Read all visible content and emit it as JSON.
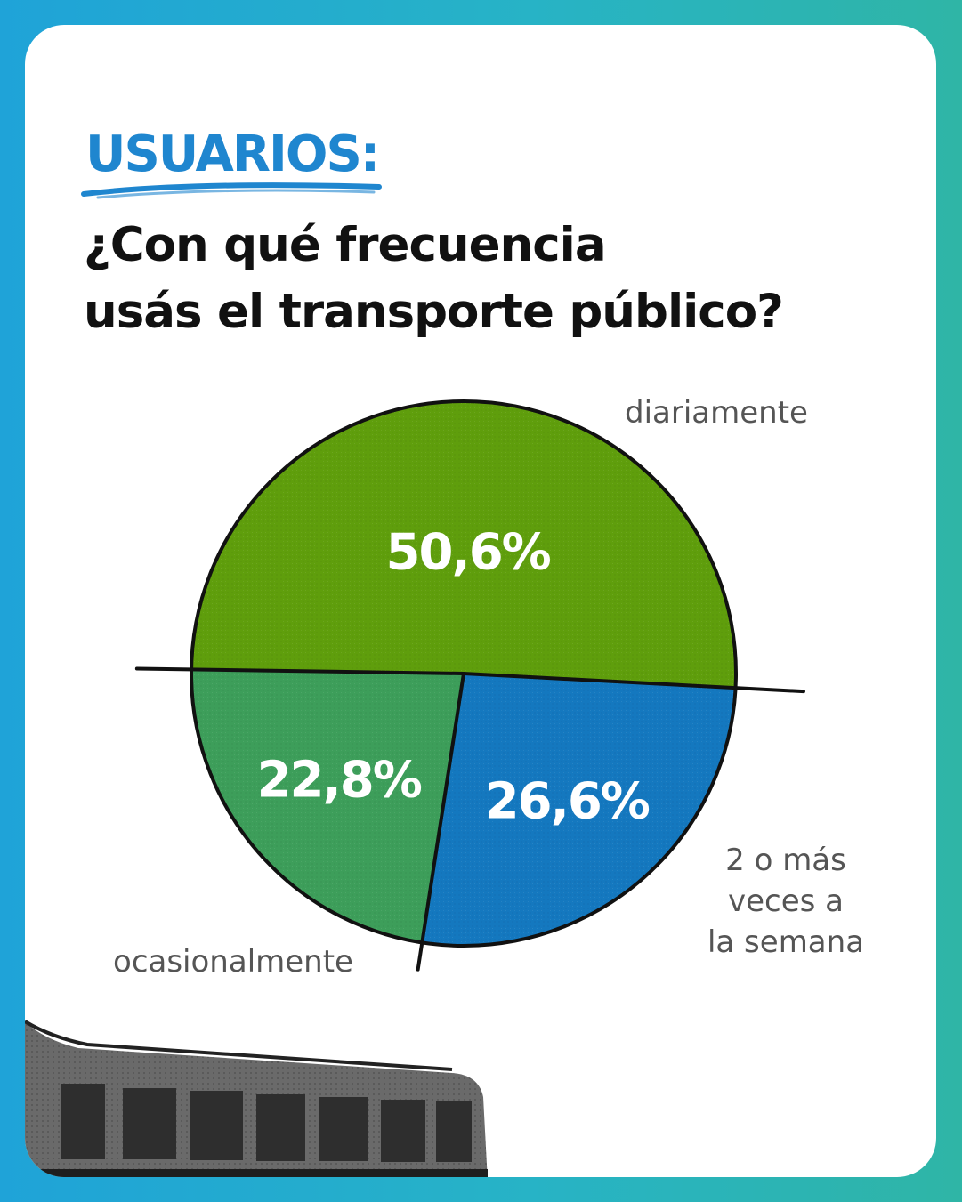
{
  "header": {
    "kicker": "USUARIOS:",
    "question_lines": [
      "¿Con qué frecuencia",
      "usás el transporte público?"
    ]
  },
  "colors": {
    "frame_left": "#1fa3d8",
    "frame_right": "#2fb5a6",
    "kicker": "#1f86cf",
    "slice_diariamente": "#5f9e0c",
    "slice_semana": "#1478bf",
    "slice_ocasional": "#3d9e5a",
    "outline": "#111111",
    "label_text": "#555555"
  },
  "chart_data": {
    "type": "pie",
    "title": "",
    "slices": [
      {
        "category_lines": [
          "diariamente"
        ],
        "value": 50.6,
        "value_label": "50,6%",
        "color": "#5f9e0c"
      },
      {
        "category_lines": [
          "2 o más",
          "veces a",
          "la semana"
        ],
        "value": 26.6,
        "value_label": "26,6%",
        "color": "#1478bf"
      },
      {
        "category_lines": [
          "ocasionalmente"
        ],
        "value": 22.8,
        "value_label": "22,8%",
        "color": "#3d9e5a"
      }
    ],
    "legend": "none"
  },
  "illustration": {
    "icon": "bus-photo"
  }
}
